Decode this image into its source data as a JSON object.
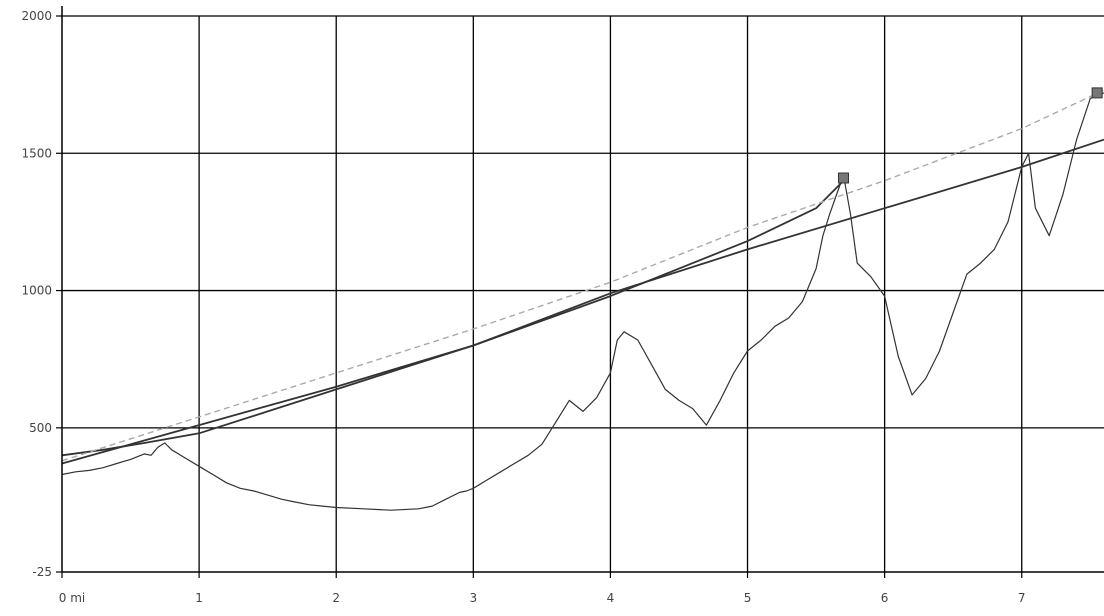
{
  "chart_data": {
    "type": "line",
    "title": "",
    "xlabel": "",
    "ylabel": "",
    "xlim": [
      0,
      7.6
    ],
    "ylim": [
      -25,
      2000
    ],
    "x_ticks": [
      {
        "value": 0,
        "label": "0 mi"
      },
      {
        "value": 1,
        "label": "1"
      },
      {
        "value": 2,
        "label": "2"
      },
      {
        "value": 3,
        "label": "3"
      },
      {
        "value": 4,
        "label": "4"
      },
      {
        "value": 5,
        "label": "5"
      },
      {
        "value": 6,
        "label": "6"
      },
      {
        "value": 7,
        "label": "7"
      }
    ],
    "y_ticks": [
      {
        "value": 2000,
        "label": "2000"
      },
      {
        "value": 1500,
        "label": "1500"
      },
      {
        "value": 1000,
        "label": "1000"
      },
      {
        "value": 500,
        "label": "500"
      },
      {
        "value": -25,
        "label": "-25"
      }
    ],
    "grid": true,
    "series": [
      {
        "color": "#333333",
        "width": 1.2,
        "x": [
          0,
          0.1,
          0.2,
          0.3,
          0.4,
          0.5,
          0.55,
          0.6,
          0.65,
          0.7,
          0.75,
          0.8,
          0.9,
          1.0,
          1.1,
          1.2,
          1.3,
          1.4,
          1.5,
          1.6,
          1.7,
          1.8,
          1.9,
          2.0,
          2.2,
          2.4,
          2.6,
          2.7,
          2.8,
          2.9,
          2.95,
          3.0,
          3.1,
          3.2,
          3.3,
          3.4,
          3.5,
          3.6,
          3.7,
          3.8,
          3.9,
          4.0,
          4.05,
          4.1,
          4.2,
          4.3,
          4.4,
          4.5,
          4.6,
          4.7,
          4.8,
          4.9,
          5.0,
          5.1,
          5.2,
          5.3,
          5.4,
          5.5,
          5.55,
          5.6,
          5.65,
          5.7,
          5.75,
          5.8,
          5.9,
          6.0,
          6.1,
          6.2,
          6.3,
          6.4,
          6.5,
          6.6,
          6.7,
          6.8,
          6.9,
          7.0,
          7.05,
          7.1,
          7.2,
          7.3,
          7.4,
          7.5,
          7.6
        ],
        "y": [
          330,
          340,
          345,
          355,
          370,
          385,
          395,
          405,
          400,
          430,
          445,
          420,
          390,
          360,
          330,
          300,
          280,
          270,
          255,
          240,
          230,
          220,
          215,
          210,
          205,
          200,
          205,
          215,
          240,
          265,
          270,
          280,
          310,
          340,
          370,
          400,
          440,
          520,
          600,
          560,
          610,
          700,
          820,
          850,
          820,
          730,
          640,
          600,
          570,
          510,
          600,
          700,
          780,
          820,
          870,
          900,
          960,
          1080,
          1200,
          1280,
          1350,
          1420,
          1280,
          1100,
          1050,
          980,
          760,
          620,
          680,
          780,
          920,
          1060,
          1100,
          1150,
          1250,
          1450,
          1500,
          1300,
          1200,
          1350,
          1550,
          1700,
          1720
        ]
      },
      {
        "color": "#333333",
        "width": 1.8,
        "x": [
          0,
          0.3,
          0.6,
          1.0,
          1.5,
          2.0,
          2.5,
          3.0,
          3.5,
          4.0,
          4.5,
          5.0,
          5.5,
          5.7
        ],
        "y": [
          400,
          420,
          445,
          480,
          560,
          640,
          720,
          800,
          890,
          980,
          1080,
          1180,
          1300,
          1400
        ]
      },
      {
        "color": "#333333",
        "width": 1.8,
        "x": [
          0,
          1.0,
          2.0,
          3.0,
          4.0,
          5.0,
          6.0,
          7.0,
          7.6
        ],
        "y": [
          370,
          510,
          650,
          800,
          990,
          1150,
          1300,
          1450,
          1550
        ]
      },
      {
        "color": "#aaaaaa",
        "width": 1.4,
        "dashed": true,
        "x": [
          0,
          1.0,
          2.0,
          3.0,
          4.0,
          5.0,
          6.0,
          7.0,
          7.6
        ],
        "y": [
          380,
          540,
          700,
          860,
          1030,
          1230,
          1400,
          1590,
          1730
        ]
      }
    ],
    "markers": [
      {
        "x": 5.7,
        "y": 1410
      },
      {
        "x": 7.55,
        "y": 1720
      }
    ]
  }
}
